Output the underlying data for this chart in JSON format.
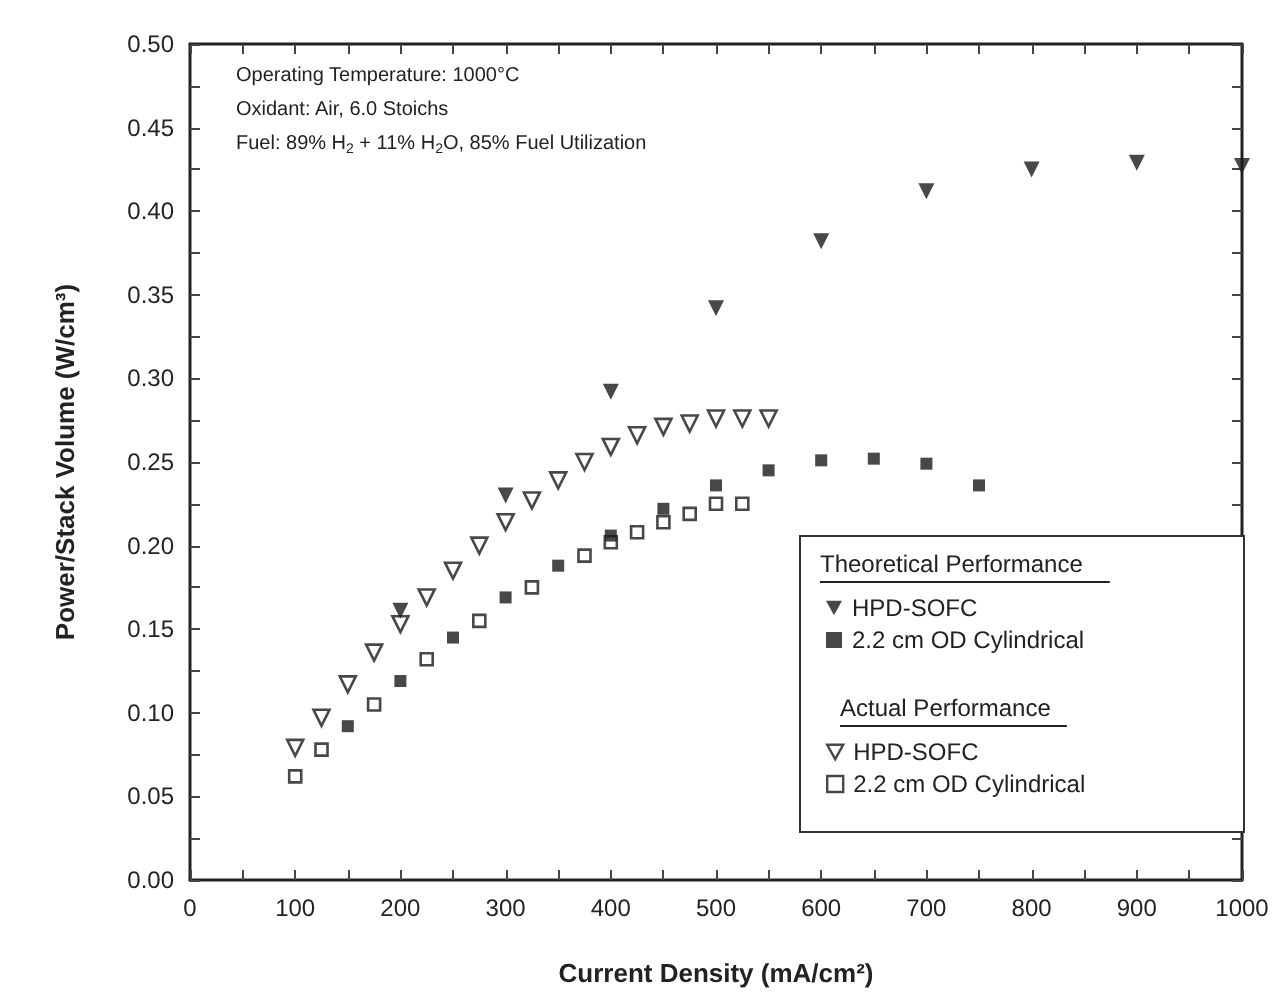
{
  "chart_data": {
    "type": "scatter",
    "xlabel": "Current Density (mA/cm²)",
    "ylabel": "Power/Stack Volume (W/cm³)",
    "annotations": [
      "Operating Temperature: 1000°C",
      "Oxidant: Air, 6.0 Stoichs",
      "Fuel: 89% H$_{2}$ + 11% H$_{2}$O, 85% Fuel Utilization",
      "Theoretical Performance",
      "Actual Performance"
    ],
    "series": [
      {
        "name": "HPD-SOFC",
        "color": "#1a1a1a",
        "marker": "triangle",
        "x": [
          200,
          300,
          400,
          500,
          600,
          700,
          800,
          900,
          1000
        ],
        "values": [
          0.161,
          0.23,
          0.292,
          0.342,
          0.382,
          0.412,
          0.425,
          0.429,
          0.427
        ]
      },
      {
        "name": "2.2 cm OD Cylindrical",
        "color": "#1a1a1a",
        "marker": "square",
        "x": [
          150,
          200,
          250,
          300,
          350,
          400,
          450,
          500,
          550,
          600,
          650,
          700,
          750
        ],
        "values": [
          0.092,
          0.119,
          0.145,
          0.169,
          0.188,
          0.206,
          0.222,
          0.236,
          0.245,
          0.251,
          0.252,
          0.249,
          0.236
        ]
      },
      {
        "name": "HPD-SOFC",
        "color": "#1a1a1a",
        "marker": "triangle",
        "x": [
          100,
          125,
          150,
          175,
          200,
          225,
          250,
          275,
          300,
          325,
          350,
          375,
          400,
          425,
          450,
          475,
          500,
          525,
          550
        ],
        "values": [
          0.079,
          0.097,
          0.117,
          0.136,
          0.153,
          0.169,
          0.185,
          0.2,
          0.214,
          0.227,
          0.239,
          0.25,
          0.259,
          0.266,
          0.271,
          0.273,
          0.276,
          0.276,
          0.276
        ]
      },
      {
        "name": "2.2 cm OD Cylindrical",
        "color": "#1a1a1a",
        "marker": "square",
        "x": [
          100,
          125,
          175,
          225,
          275,
          325,
          375,
          400,
          425,
          450,
          475,
          500,
          525
        ],
        "values": [
          0.062,
          0.078,
          0.105,
          0.132,
          0.155,
          0.175,
          0.194,
          0.202,
          0.208,
          0.214,
          0.219,
          0.225,
          0.225
        ]
      }
    ],
    "xlim": [
      0,
      1000
    ],
    "xticks": [
      0,
      100,
      200,
      300,
      400,
      500,
      600,
      700,
      800,
      900,
      1000
    ],
    "ylim": [
      0,
      0.5
    ],
    "yticks": [
      {
        "value": 0,
        "label": "0.00"
      },
      {
        "value": 0.05,
        "label": "0.05"
      },
      {
        "value": 0.1,
        "label": "0.10"
      },
      {
        "value": 0.15,
        "label": "0.15"
      },
      {
        "value": 0.2,
        "label": "0.20"
      },
      {
        "value": 0.25,
        "label": "0.25"
      },
      {
        "value": 0.3,
        "label": "0.30"
      },
      {
        "value": 0.35,
        "label": "0.35"
      },
      {
        "value": 0.4,
        "label": "0.40"
      },
      {
        "value": 0.45,
        "label": "0.45"
      },
      {
        "value": 0.5,
        "label": "0.50"
      }
    ],
    "grid": false,
    "legend": "bottom right"
  }
}
